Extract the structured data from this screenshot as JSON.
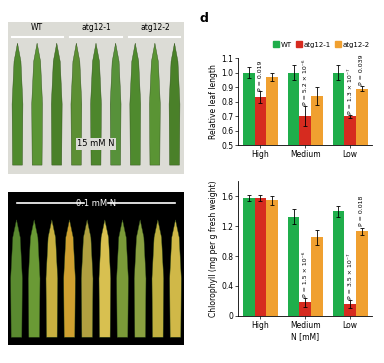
{
  "panel_label": "d",
  "photos": [
    {
      "condition": "15 mM N",
      "genotypes": [
        "WT",
        "atg12-1",
        "atg12-2"
      ]
    },
    {
      "condition": "0.1 mM N"
    }
  ],
  "chart_data": [
    {
      "type": "bar",
      "y_label": "Relative leaf length",
      "categories": [
        "High",
        "Medium",
        "Low"
      ],
      "series": [
        {
          "name": "WT",
          "color": "#1fae4b",
          "values": [
            1.0,
            1.0,
            1.0
          ],
          "errors": [
            0.04,
            0.05,
            0.05
          ]
        },
        {
          "name": "atg12-1",
          "color": "#d62b1f",
          "values": [
            0.83,
            0.7,
            0.7
          ],
          "errors": [
            0.04,
            0.07,
            0.01
          ]
        },
        {
          "name": "atg12-2",
          "color": "#f0a030",
          "values": [
            0.97,
            0.84,
            0.89
          ],
          "errors": [
            0.03,
            0.06,
            0.02
          ]
        }
      ],
      "ylim": [
        0.5,
        1.1
      ],
      "yticks": [
        0.5,
        0.6,
        0.7,
        0.8,
        0.9,
        1.0,
        1.1
      ],
      "legend": "upper right",
      "annotations": [
        {
          "text": "P = 0.019",
          "category": "High",
          "series": "atg12-1"
        },
        {
          "text": "P = 5.2 × 10⁻⁶",
          "category": "Medium",
          "series": "atg12-1"
        },
        {
          "text": "P = 1.3 × 10⁻⁷",
          "category": "Low",
          "series": "atg12-1"
        },
        {
          "text": "P = 0.039",
          "category": "Low",
          "series": "atg12-2"
        }
      ]
    },
    {
      "type": "bar",
      "x_label": "N [mM]",
      "y_label": "Chlorophyll (mg per g fresh weight)",
      "categories": [
        "High",
        "Medium",
        "Low"
      ],
      "series": [
        {
          "name": "WT",
          "color": "#1fae4b",
          "values": [
            1.58,
            1.33,
            1.4
          ],
          "errors": [
            0.04,
            0.1,
            0.07
          ]
        },
        {
          "name": "atg12-1",
          "color": "#d62b1f",
          "values": [
            1.58,
            0.18,
            0.16
          ],
          "errors": [
            0.04,
            0.06,
            0.05
          ]
        },
        {
          "name": "atg12-2",
          "color": "#f0a030",
          "values": [
            1.55,
            1.05,
            1.13
          ],
          "errors": [
            0.06,
            0.1,
            0.05
          ]
        }
      ],
      "ylim": [
        0,
        1.8
      ],
      "yticks": [
        0,
        0.4,
        0.8,
        1.2,
        1.6
      ],
      "annotations": [
        {
          "text": "P = 1.5 × 10⁻⁶",
          "category": "Medium",
          "series": "atg12-1"
        },
        {
          "text": "P = 3.5 × 10⁻⁷",
          "category": "Low",
          "series": "atg12-1"
        },
        {
          "text": "P = 0.018",
          "category": "Low",
          "series": "atg12-2"
        }
      ]
    }
  ]
}
